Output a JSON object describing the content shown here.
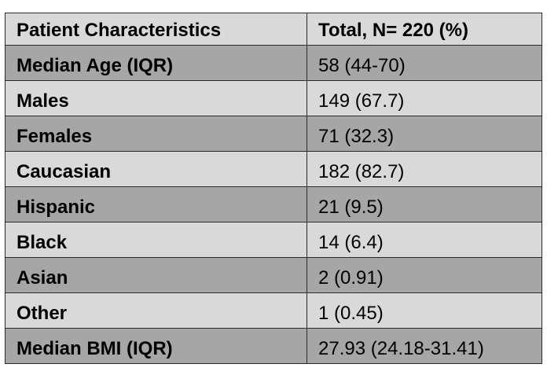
{
  "table": {
    "headers": [
      "Patient Characteristics",
      "Total, N= 220 (%)"
    ],
    "rows": [
      {
        "label": "Median Age (IQR)",
        "value": "58 (44-70)"
      },
      {
        "label": "Males",
        "value": "149 (67.7)"
      },
      {
        "label": "Females",
        "value": "71 (32.3)"
      },
      {
        "label": "Caucasian",
        "value": "182 (82.7)"
      },
      {
        "label": "Hispanic",
        "value": "21 (9.5)"
      },
      {
        "label": "Black",
        "value": "14 (6.4)"
      },
      {
        "label": "Asian",
        "value": "2 (0.91)"
      },
      {
        "label": "Other",
        "value": "1 (0.45)"
      },
      {
        "label": "Median BMI (IQR)",
        "value": "27.93 (24.18-31.41)"
      }
    ]
  },
  "colors": {
    "header_bg": "#d9d9d9",
    "shaded_row_bg": "#a6a6a6",
    "plain_row_bg": "#d9d9d9",
    "border": "#2b2b2b",
    "text": "#000000"
  }
}
